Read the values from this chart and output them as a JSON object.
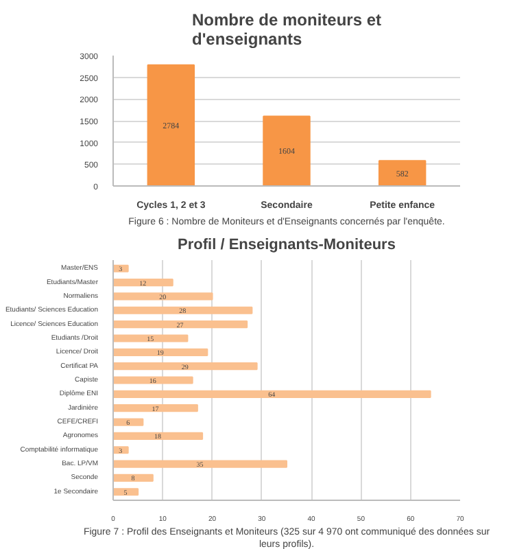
{
  "chart_data": [
    {
      "type": "bar",
      "title": "Nombre de moniteurs et\nd'enseignants",
      "categories": [
        "Cycles 1, 2 et 3",
        "Secondaire",
        "Petite enfance"
      ],
      "values": [
        2784,
        1604,
        582
      ],
      "color": "#f79646",
      "ylim": [
        0,
        3000
      ],
      "yticks": [
        0,
        500,
        1000,
        1500,
        2000,
        2500,
        3000
      ],
      "grid": "y",
      "data_labels": true,
      "annotations": [
        "Figure 6 : Nombre de Moniteurs et d'Enseignants concernés par l'enquête."
      ]
    },
    {
      "type": "bar",
      "orientation": "horizontal",
      "title": "Profil / Enseignants-Moniteurs",
      "categories": [
        "Master/ENS",
        "Etudiants/Master",
        "Normaliens",
        "Etudiants/ Sciences Education",
        "Licence/ Sciences Education",
        "Etudiants /Droit",
        "Licence/ Droit",
        "Certificat PA",
        "Capiste",
        "Diplôme ENI",
        "Jardinière",
        "CEFE/CREFI",
        "Agronomes",
        "Comptabilité informatique",
        "Bac. LP/VM",
        "Seconde",
        "1e Secondaire"
      ],
      "values": [
        3,
        12,
        20,
        28,
        27,
        15,
        19,
        29,
        16,
        64,
        17,
        6,
        18,
        3,
        35,
        8,
        5
      ],
      "color": "#fac08f",
      "xlim": [
        0,
        70
      ],
      "xticks": [
        0,
        10,
        20,
        30,
        40,
        50,
        60,
        70
      ],
      "grid": "x",
      "data_labels": true,
      "annotations": [
        "Figure 7 : Profil des Enseignants et Moniteurs (325 sur 4 970 ont communiqué des données sur leurs profils)."
      ]
    }
  ]
}
